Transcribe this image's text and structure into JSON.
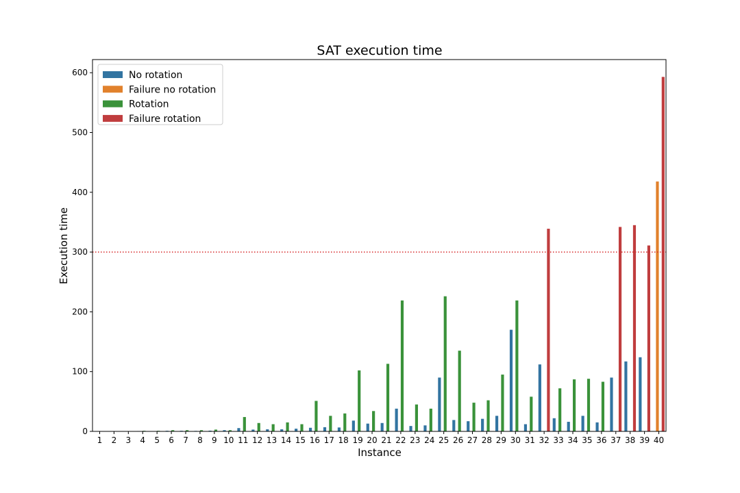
{
  "chart_data": {
    "type": "bar",
    "title": "SAT execution time",
    "xlabel": "Instance",
    "ylabel": "Execution time",
    "ylim": [
      0,
      622
    ],
    "yticks": [
      0,
      100,
      200,
      300,
      400,
      500,
      600
    ],
    "categories": [
      "1",
      "2",
      "3",
      "4",
      "5",
      "6",
      "7",
      "8",
      "9",
      "10",
      "11",
      "12",
      "13",
      "14",
      "15",
      "16",
      "17",
      "18",
      "19",
      "20",
      "21",
      "22",
      "23",
      "24",
      "25",
      "26",
      "27",
      "28",
      "29",
      "30",
      "31",
      "32",
      "33",
      "34",
      "35",
      "36",
      "37",
      "38",
      "39",
      "40"
    ],
    "threshold": {
      "value": 300,
      "color": "#d62728",
      "style": "dotted"
    },
    "legend_position": "top-left",
    "series": [
      {
        "name": "No rotation",
        "color": "#3274a1",
        "values": [
          0.2,
          0.2,
          0.3,
          0.6,
          0.5,
          1.0,
          1.0,
          0.8,
          1.2,
          2.0,
          5.5,
          3.0,
          3.5,
          3.5,
          4.5,
          6.0,
          7.0,
          6.5,
          18,
          13,
          14,
          38,
          9,
          10,
          90,
          19,
          17,
          21,
          26,
          170,
          12,
          112,
          22,
          16,
          26,
          15,
          90,
          117,
          124,
          null
        ]
      },
      {
        "name": "Failure no rotation",
        "color": "#e1812c",
        "values": [
          null,
          null,
          null,
          null,
          null,
          null,
          null,
          null,
          null,
          null,
          null,
          null,
          null,
          null,
          null,
          null,
          null,
          null,
          null,
          null,
          null,
          null,
          null,
          null,
          null,
          null,
          null,
          null,
          null,
          null,
          null,
          null,
          null,
          null,
          null,
          null,
          null,
          null,
          null,
          418
        ]
      },
      {
        "name": "Rotation",
        "color": "#3a923a",
        "values": [
          0.3,
          0.4,
          0.5,
          1.0,
          1.0,
          2.0,
          2.0,
          2.0,
          3.0,
          2.0,
          24,
          14,
          12,
          15,
          12,
          51,
          26,
          30,
          102,
          34,
          113,
          219,
          45,
          38,
          226,
          135,
          48,
          52,
          95,
          219,
          58,
          null,
          72,
          87,
          88,
          83,
          null,
          null,
          null,
          null
        ]
      },
      {
        "name": "Failure rotation",
        "color": "#c03d3e",
        "values": [
          null,
          null,
          null,
          null,
          null,
          null,
          null,
          null,
          null,
          null,
          null,
          null,
          null,
          null,
          null,
          null,
          null,
          null,
          null,
          null,
          null,
          null,
          null,
          null,
          null,
          null,
          null,
          null,
          null,
          null,
          null,
          339,
          null,
          null,
          null,
          null,
          342,
          345,
          311,
          593
        ]
      }
    ]
  }
}
